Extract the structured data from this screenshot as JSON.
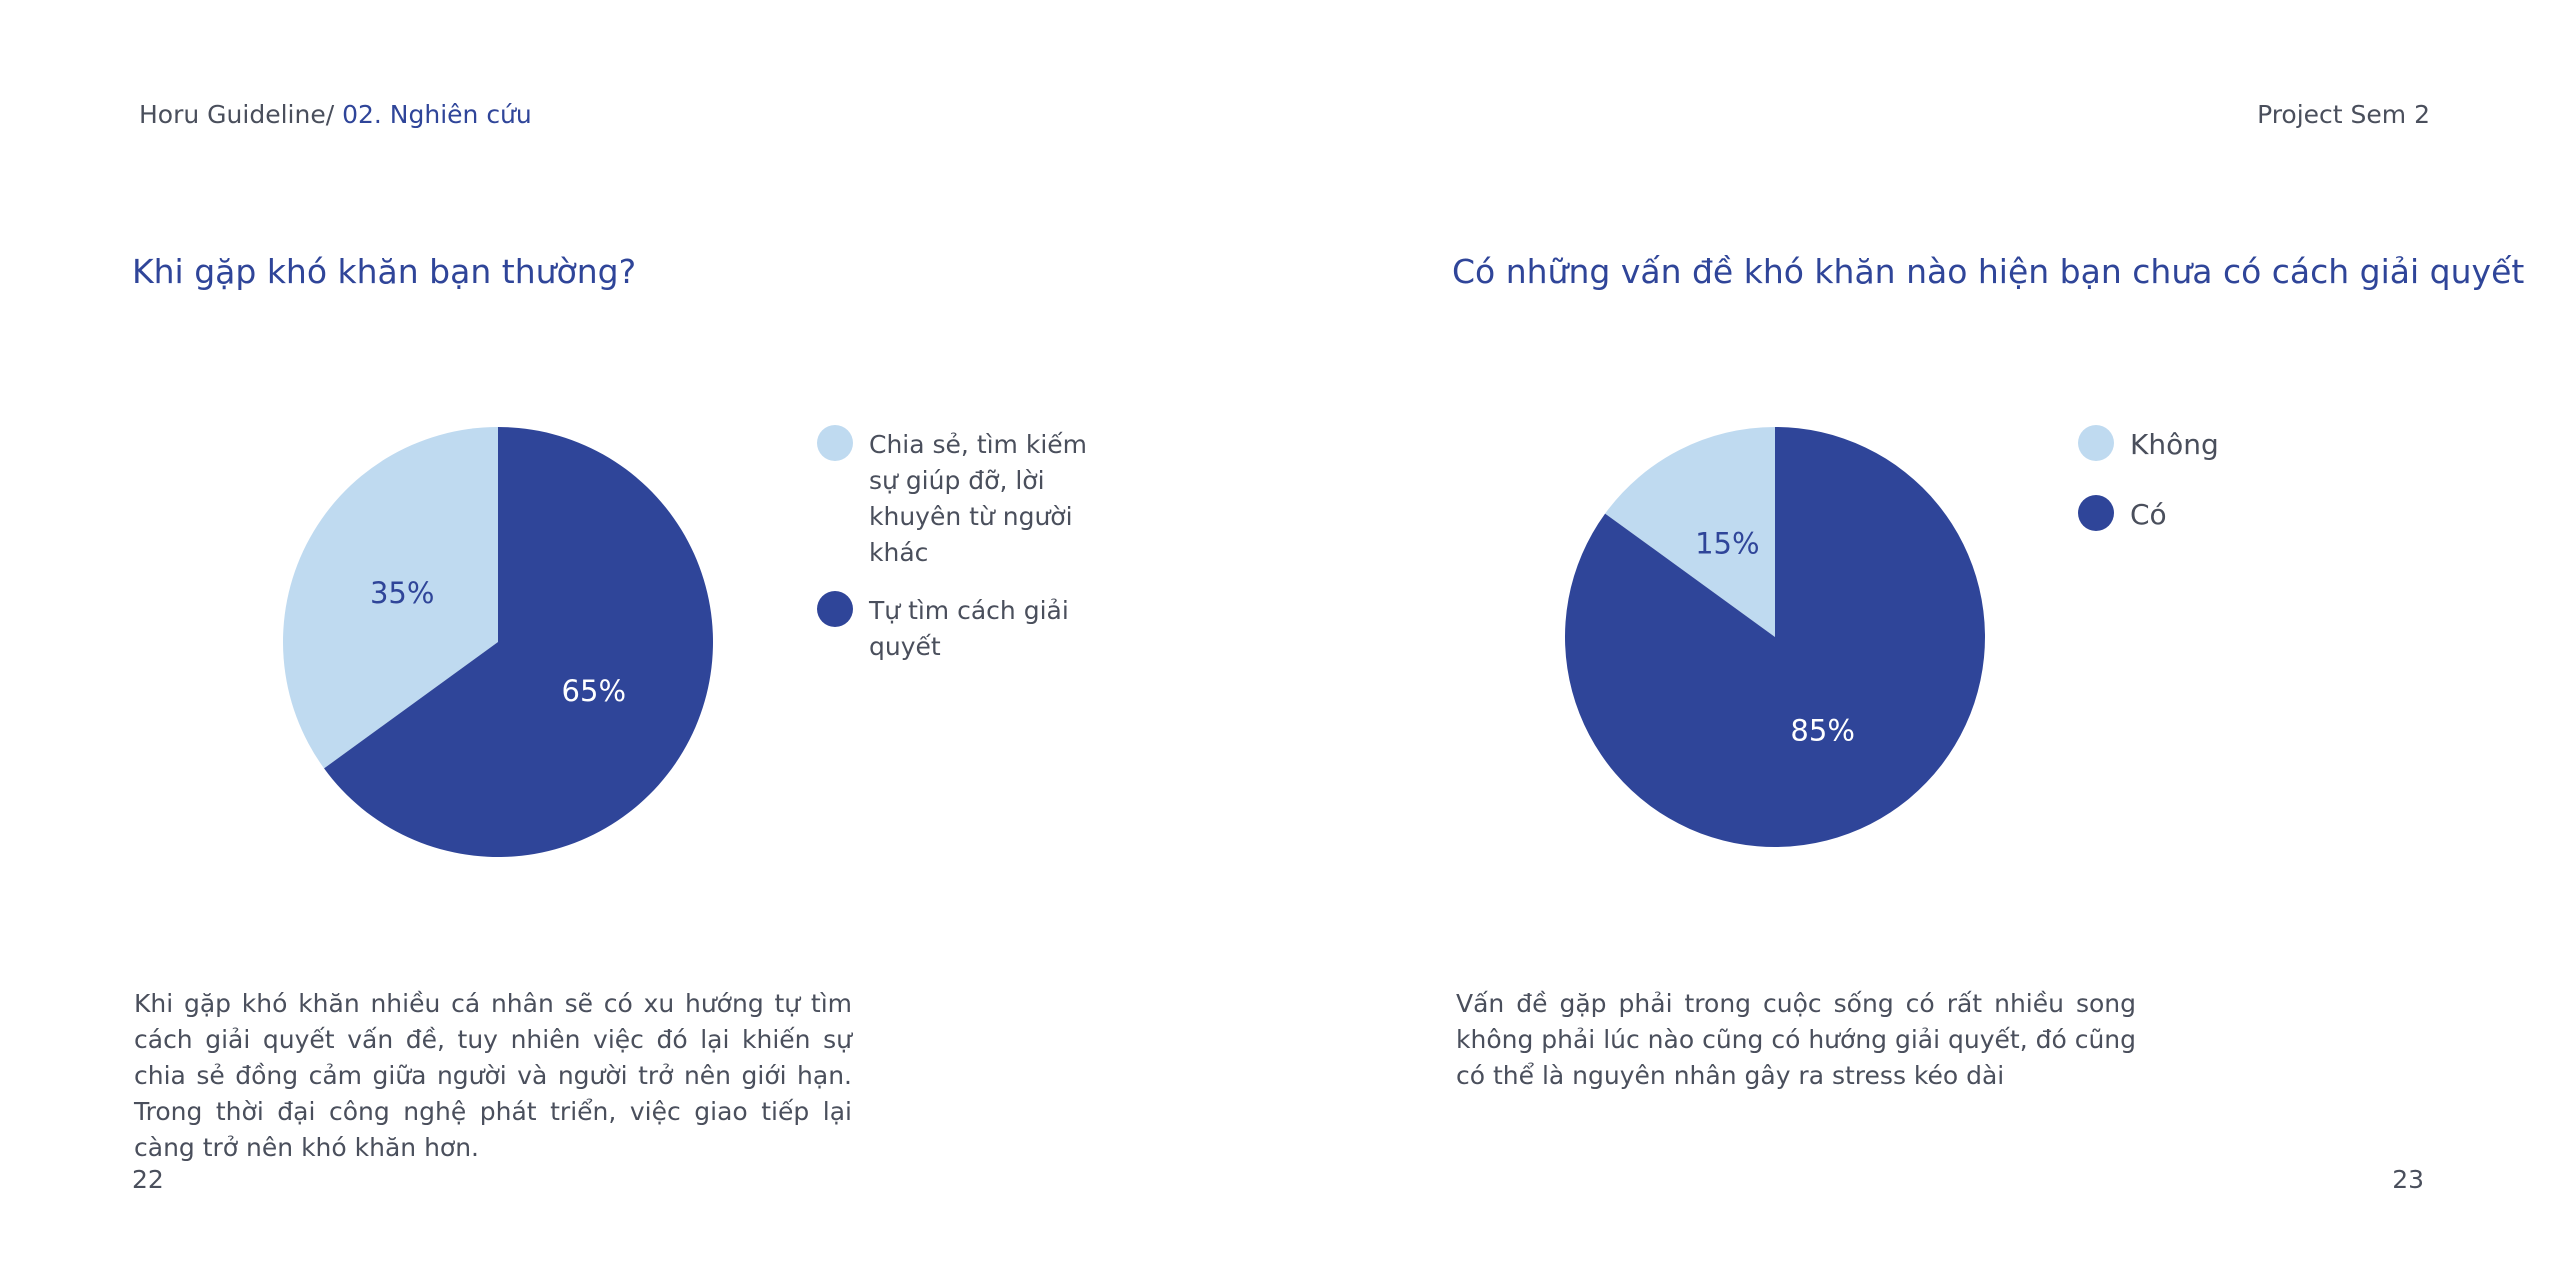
{
  "header": {
    "breadcrumb_prefix": "Horu Guideline/ ",
    "breadcrumb_section": "02. Nghiên cứu",
    "project": "Project Sem 2"
  },
  "colors": {
    "light": "#bfdaf0",
    "dark": "#2f4599"
  },
  "chart_data": [
    {
      "type": "pie",
      "title": "Khi gặp khó khăn bạn thường?",
      "categories": [
        "Chia sẻ, tìm kiếm sự giúp đỡ, lời khuyên từ người khác",
        "Tự tìm cách giải quyết"
      ],
      "values": [
        35,
        65
      ],
      "labels": [
        "35%",
        "65%"
      ],
      "colors": [
        "#bfdaf0",
        "#2f4599"
      ],
      "legend": "right"
    },
    {
      "type": "pie",
      "title": "Có những vấn đề khó khăn nào hiện bạn chưa có cách giải quyết",
      "categories": [
        "Không",
        "Có"
      ],
      "values": [
        15,
        85
      ],
      "labels": [
        "15%",
        "85%"
      ],
      "colors": [
        "#bfdaf0",
        "#2f4599"
      ],
      "legend": "right"
    }
  ],
  "descriptions": {
    "left": "Khi gặp khó khăn nhiều cá nhân sẽ có xu hướng tự tìm cách giải quyết vấn đề, tuy nhiên việc đó lại khiến sự chia sẻ đồng cảm giữa người và người trở nên giới  hạn. Trong thời đại công nghệ phát triển, việc giao tiếp lại càng trở nên khó khăn hơn.",
    "right": "Vấn đề gặp phải trong cuộc sống có rất nhiều song không phải lúc nào cũng có hướng giải quyết, đó cũng có thể là nguyên nhân gây ra stress kéo dài"
  },
  "pages": {
    "left": "22",
    "right": "23"
  }
}
